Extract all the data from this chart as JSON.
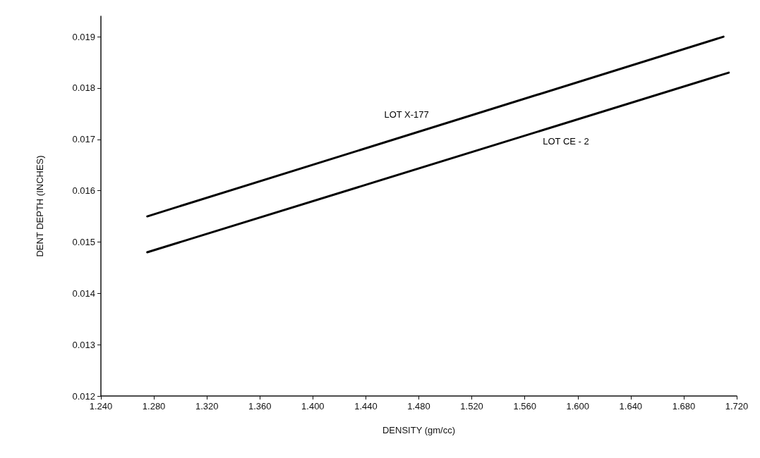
{
  "chart_data": {
    "type": "line",
    "xlabel": "DENSITY (gm/cc)",
    "ylabel": "DENT DEPTH (INCHES)",
    "series": [
      {
        "name": "LOT X-177",
        "color": "#000000",
        "x": [
          1.275,
          1.71
        ],
        "values": [
          0.0155,
          0.019
        ]
      },
      {
        "name": "LOT CE - 2",
        "color": "#000000",
        "x": [
          1.275,
          1.714
        ],
        "values": [
          0.0148,
          0.0183
        ]
      }
    ],
    "xlim": [
      1.24,
      1.72
    ],
    "ylim": [
      0.012,
      0.0194
    ],
    "xticks": [
      {
        "value": 1.24,
        "label": "1.240"
      },
      {
        "value": 1.28,
        "label": "1.280"
      },
      {
        "value": 1.32,
        "label": "1.320"
      },
      {
        "value": 1.36,
        "label": "1.360"
      },
      {
        "value": 1.4,
        "label": "1.400"
      },
      {
        "value": 1.44,
        "label": "1.440"
      },
      {
        "value": 1.48,
        "label": "1.480"
      },
      {
        "value": 1.52,
        "label": "1.520"
      },
      {
        "value": 1.56,
        "label": "1.560"
      },
      {
        "value": 1.6,
        "label": "1.600"
      },
      {
        "value": 1.64,
        "label": "1.640"
      },
      {
        "value": 1.68,
        "label": "1.680"
      },
      {
        "value": 1.72,
        "label": "1.720"
      }
    ],
    "yticks": [
      0.012,
      0.013,
      0.014,
      0.015,
      0.016,
      0.017,
      0.018,
      0.019
    ],
    "grid": false,
    "marker": "none",
    "line_style": "solid"
  }
}
